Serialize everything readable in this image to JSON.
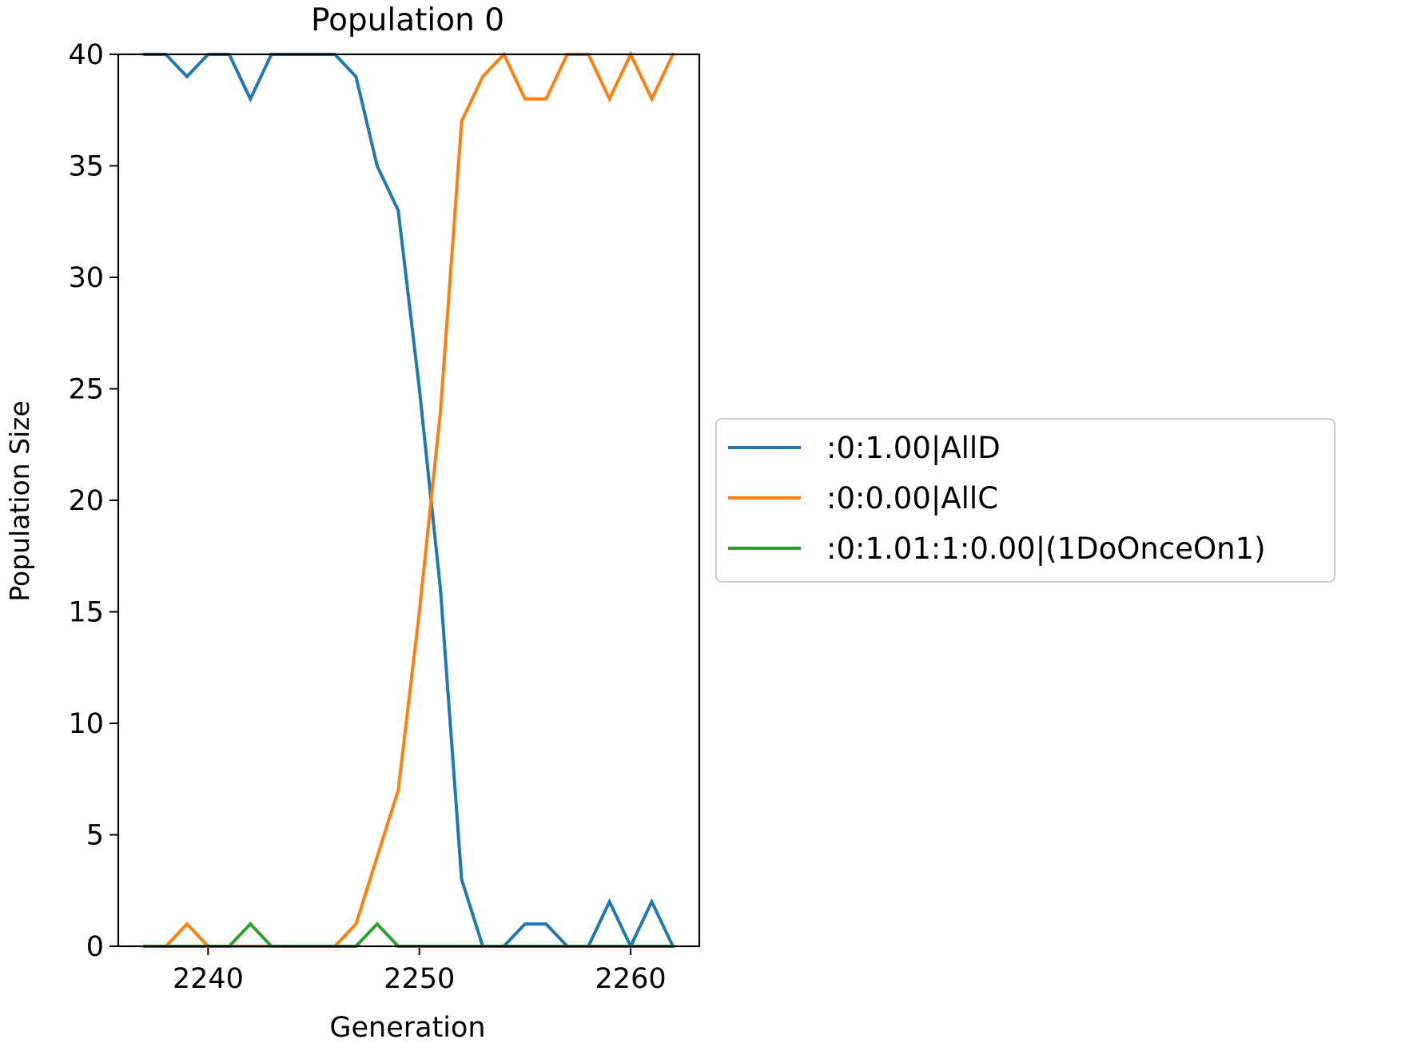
{
  "chart_data": {
    "type": "line",
    "title": "Population 0",
    "xlabel": "Generation",
    "ylabel": "Population Size",
    "xlim": [
      2235.75,
      2263.25
    ],
    "ylim": [
      0,
      40
    ],
    "xticks": [
      2240,
      2250,
      2260
    ],
    "yticks": [
      0,
      5,
      10,
      15,
      20,
      25,
      30,
      35,
      40
    ],
    "grid": false,
    "legend_position": "center-right, outside plot",
    "x": [
      2237,
      2238,
      2239,
      2240,
      2241,
      2242,
      2243,
      2244,
      2245,
      2246,
      2247,
      2248,
      2249,
      2250,
      2251,
      2252,
      2253,
      2254,
      2255,
      2256,
      2257,
      2258,
      2259,
      2260,
      2261,
      2262
    ],
    "series": [
      {
        "name": ":0:1.00|AllD",
        "color": "#1f77b4",
        "values": [
          40,
          40,
          39,
          40,
          40,
          38,
          40,
          40,
          40,
          40,
          39,
          35,
          33,
          25,
          16,
          3,
          0,
          0,
          1,
          1,
          0,
          0,
          2,
          0,
          2,
          0
        ]
      },
      {
        "name": ":0:0.00|AllC",
        "color": "#ff7f0e",
        "values": [
          0,
          0,
          1,
          0,
          0,
          0,
          0,
          0,
          0,
          0,
          1,
          4,
          7,
          15,
          24,
          37,
          39,
          40,
          38,
          38,
          40,
          40,
          38,
          40,
          38,
          40
        ]
      },
      {
        "name": ":0:1.01:1:0.00|(1DoOnceOn1)",
        "color": "#2ca02c",
        "values": [
          0,
          0,
          0,
          0,
          0,
          1,
          0,
          0,
          0,
          0,
          0,
          1,
          0,
          0,
          0,
          0,
          0,
          0,
          0,
          0,
          0,
          0,
          0,
          0,
          0,
          0
        ]
      }
    ]
  }
}
